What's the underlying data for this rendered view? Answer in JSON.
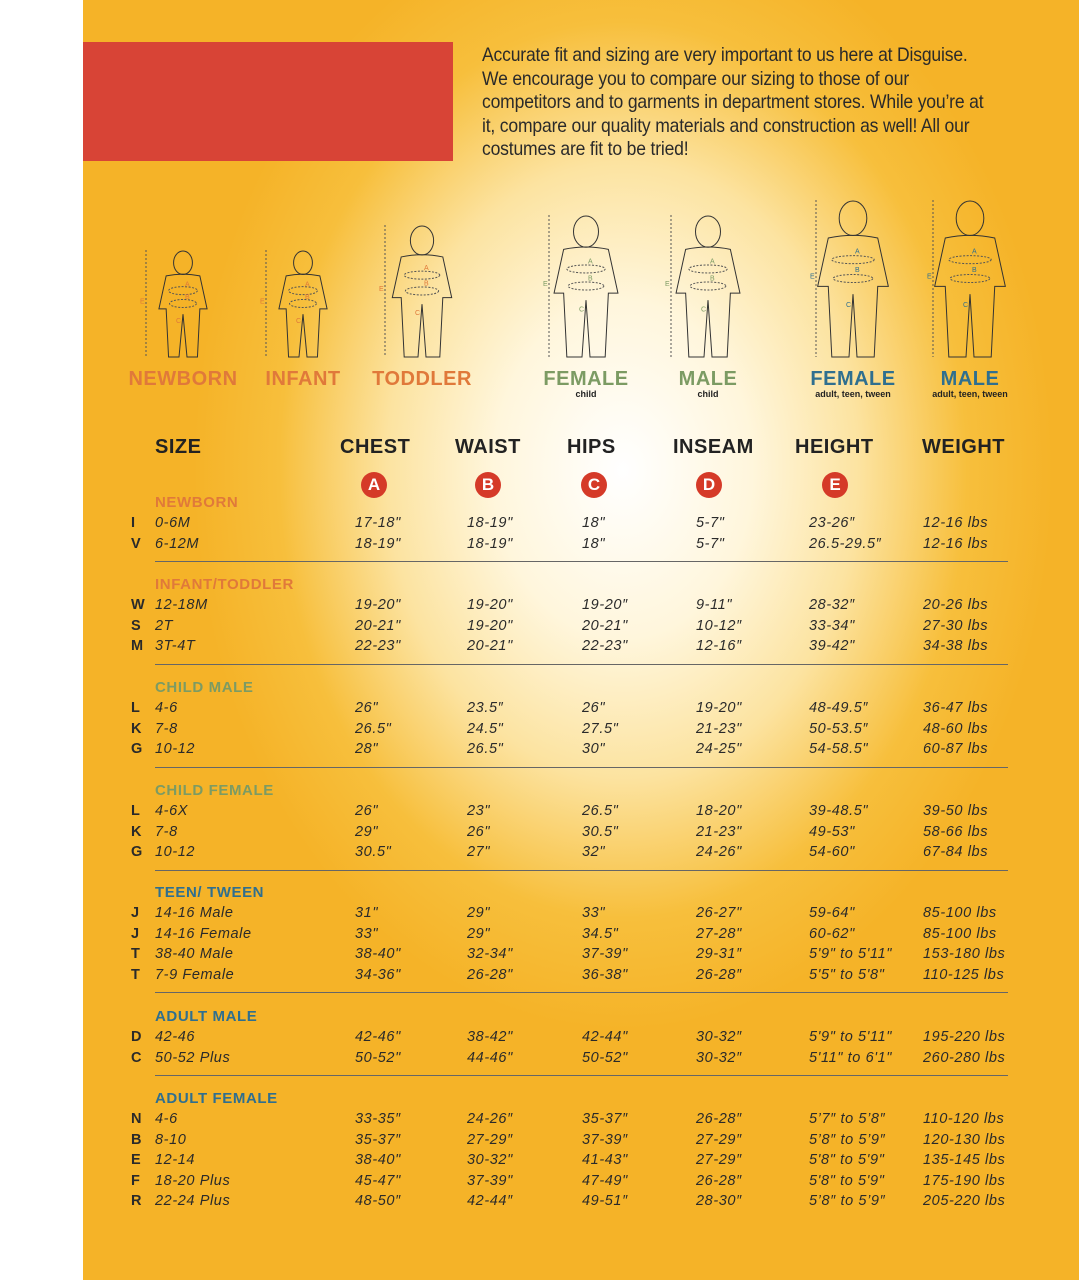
{
  "intro": "Accurate fit and sizing are very important to us here at Disguise. We encourage you to compare our sizing to those of our competitors and to garments in department stores. While you’re at it, compare our quality materials and construction as well! All our costumes are fit to be tried!",
  "colors": {
    "banner": "#d84436",
    "orange": "#e0793a",
    "green": "#7c9b63",
    "blue": "#2f6f8f",
    "circle": "#d53a28"
  },
  "figures": [
    {
      "label": "NEWBORN",
      "sub": "",
      "color": "orange"
    },
    {
      "label": "INFANT",
      "sub": "",
      "color": "orange"
    },
    {
      "label": "TODDLER",
      "sub": "",
      "color": "orange"
    },
    {
      "label": "FEMALE",
      "sub": "child",
      "color": "green"
    },
    {
      "label": "MALE",
      "sub": "child",
      "color": "green"
    },
    {
      "label": "FEMALE",
      "sub": "adult, teen, tween",
      "color": "blue"
    },
    {
      "label": "MALE",
      "sub": "adult, teen, tween",
      "color": "blue"
    }
  ],
  "figure_markers": [
    "A",
    "B",
    "C",
    "D",
    "E"
  ],
  "table": {
    "headers": [
      "SIZE",
      "CHEST",
      "WAIST",
      "HIPS",
      "INSEAM",
      "HEIGHT",
      "WEIGHT"
    ],
    "circles": [
      "A",
      "B",
      "C",
      "D",
      "E"
    ],
    "sections": [
      {
        "title": "NEWBORN",
        "color": "orange",
        "rows": [
          [
            "I",
            "0-6M",
            "17-18\"",
            "18-19\"",
            "18\"",
            "5-7\"",
            "23-26″",
            "12-16 lbs"
          ],
          [
            "V",
            "6-12M",
            "18-19\"",
            "18-19\"",
            "18\"",
            "5-7\"",
            "26.5-29.5″",
            "12-16 lbs"
          ]
        ]
      },
      {
        "title": "INFANT/TODDLER",
        "color": "orange",
        "rows": [
          [
            "W",
            "12-18M",
            "19-20\"",
            "19-20\"",
            "19-20″",
            "9-11\"",
            "28-32″",
            "20-26 lbs"
          ],
          [
            "S",
            "2T",
            "20-21\"",
            "19-20\"",
            "20-21\"",
            "10-12″",
            "33-34\"",
            "27-30 lbs"
          ],
          [
            "M",
            "3T-4T",
            "22-23\"",
            "20-21\"",
            "22-23\"",
            "12-16″",
            "39-42\"",
            "34-38 lbs"
          ]
        ]
      },
      {
        "title": "CHILD MALE",
        "color": "green",
        "rows": [
          [
            "L",
            "4-6",
            "26\"",
            "23.5″",
            "26\"",
            "19-20\"",
            "48-49.5″",
            "36-47 lbs"
          ],
          [
            "K",
            "7-8",
            "26.5\"",
            "24.5\"",
            "27.5\"",
            "21-23\"",
            "50-53.5″",
            "48-60 lbs"
          ],
          [
            "G",
            "10-12",
            "28\"",
            "26.5\"",
            "30\"",
            "24-25\"",
            "54-58.5\"",
            "60-87 lbs"
          ]
        ]
      },
      {
        "title": "CHILD FEMALE",
        "color": "green",
        "rows": [
          [
            "L",
            "4-6X",
            "26\"",
            "23\"",
            "26.5\"",
            "18-20\"",
            "39-48.5\"",
            "39-50 lbs"
          ],
          [
            "K",
            "7-8",
            "29\"",
            "26\"",
            "30.5\"",
            "21-23\"",
            "49-53\"",
            "58-66 lbs"
          ],
          [
            "G",
            "10-12",
            "30.5\"",
            "27\"",
            "32\"",
            "24-26\"",
            "54-60\"",
            "67-84 lbs"
          ]
        ]
      },
      {
        "title": "TEEN/ TWEEN",
        "color": "blue",
        "rows": [
          [
            "J",
            "14-16 Male",
            "31\"",
            "29\"",
            "33\"",
            "26-27\"",
            "59-64\"",
            "85-100 lbs"
          ],
          [
            "J",
            "14-16 Female",
            "33\"",
            "29\"",
            "34.5\"",
            "27-28\"",
            "60-62\"",
            "85-100 lbs"
          ],
          [
            "T",
            "38-40 Male",
            "38-40\"",
            "32-34\"",
            "37-39\"",
            "29-31″",
            "5'9\" to 5'11\"",
            "153-180 lbs"
          ],
          [
            "T",
            "7-9 Female",
            "34-36\"",
            "26-28\"",
            "36-38\"",
            "26-28″",
            "5'5\" to 5'8\"",
            "110-125 lbs"
          ]
        ]
      },
      {
        "title": "ADULT MALE",
        "color": "blue",
        "rows": [
          [
            "D",
            "42-46",
            "42-46\"",
            "38-42\"",
            "42-44\"",
            "30-32″",
            "5'9\" to 5'11\"",
            "195-220 lbs"
          ],
          [
            "C",
            "50-52 Plus",
            "50-52\"",
            "44-46\"",
            "50-52\"",
            "30-32″",
            "5'11\" to 6'1\"",
            "260-280 lbs"
          ]
        ]
      },
      {
        "title": "ADULT FEMALE",
        "color": "blue",
        "rows": [
          [
            "N",
            "4-6",
            "33-35″",
            "24-26″",
            "35-37″",
            "26-28″",
            "5’7″ to 5’8″",
            "110-120 lbs"
          ],
          [
            "B",
            "8-10",
            "35-37″",
            "27-29″",
            "37-39″",
            "27-29″",
            "5’8″ to 5’9″",
            "120-130 lbs"
          ],
          [
            "E",
            "12-14",
            "38-40\"",
            "30-32\"",
            "41-43\"",
            "27-29″",
            "5'8\" to 5'9\"",
            "135-145 lbs"
          ],
          [
            "F",
            "18-20 Plus",
            "45-47\"",
            "37-39\"",
            "47-49\"",
            "26-28″",
            "5'8\" to 5'9\"",
            "175-190 lbs"
          ],
          [
            "R",
            "22-24 Plus",
            "48-50″",
            "42-44″",
            "49-51″",
            "28-30″",
            "5’8″ to 5’9″",
            "205-220 lbs"
          ]
        ]
      }
    ]
  }
}
